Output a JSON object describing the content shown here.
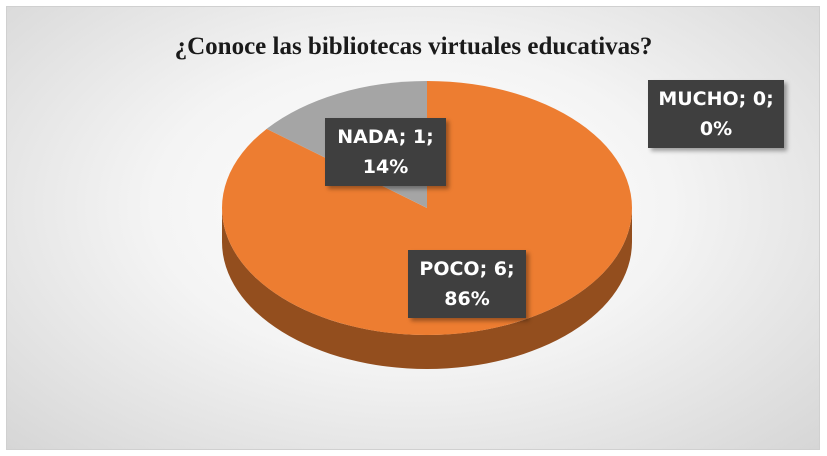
{
  "chart_data": {
    "type": "pie",
    "title": "¿Conoce las bibliotecas virtuales educativas?",
    "categories": [
      "MUCHO",
      "POCO",
      "NADA"
    ],
    "values": [
      0,
      6,
      1
    ],
    "percentages": [
      0,
      86,
      14
    ],
    "value_labels": [
      "MUCHO; 0; 0%",
      "POCO; 6; 86%",
      "NADA; 1; 14%"
    ],
    "colors": [
      "#4472c4",
      "#ed7d31",
      "#a5a5a5"
    ]
  }
}
